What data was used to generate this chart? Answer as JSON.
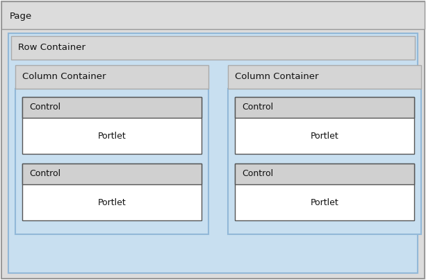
{
  "fig_width": 6.13,
  "fig_height": 4.04,
  "dpi": 100,
  "bg_white": "#ffffff",
  "page_bg": "#dcdcdc",
  "page_border": "#999999",
  "page_label": "Page",
  "row_outer_bg": "#c8dff0",
  "row_outer_border": "#92b8d8",
  "row_header_bg": "#d8d8d8",
  "row_header_border": "#aaaaaa",
  "row_label": "Row Container",
  "col_header_bg": "#d5d5d5",
  "col_header_border": "#aaaaaa",
  "col_inner_bg": "#c8dff0",
  "col_inner_border": "#92b8d8",
  "portlet_outer_bg": "#ffffff",
  "portlet_outer_border": "#555555",
  "control_bg": "#d0d0d0",
  "control_border": "#555555",
  "portlet_white": "#ffffff",
  "font_size": 8.5,
  "label_color": "#111111",
  "col_label": "Column Container",
  "control_label": "Control",
  "portlet_label": "Portlet"
}
